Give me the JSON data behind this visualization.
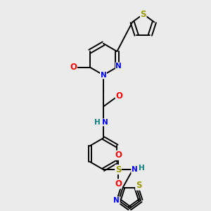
{
  "bg_color": "#ebebeb",
  "bond_color": "#000000",
  "atom_colors": {
    "S": "#999900",
    "N": "#0000ff",
    "O": "#ff0000",
    "H": "#008080",
    "C": "#000000"
  },
  "font_size": 7.5,
  "lw": 1.4,
  "dbond_sep": 0.09
}
